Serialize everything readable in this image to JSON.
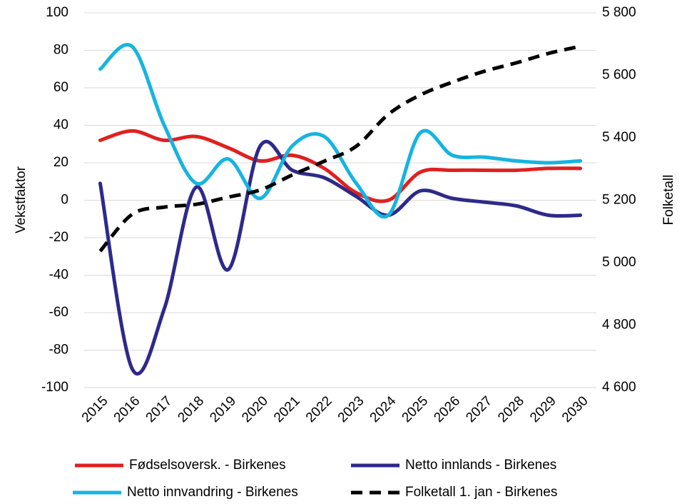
{
  "chart_data": {
    "type": "line",
    "categories": [
      "2015",
      "2016",
      "2017",
      "2018",
      "2019",
      "2020",
      "2021",
      "2022",
      "2023",
      "2024",
      "2025",
      "2026",
      "2027",
      "2028",
      "2029",
      "2030"
    ],
    "ylabel": "Vekstfaktor",
    "y2label": "Folketall",
    "ylim": [
      -100,
      100
    ],
    "yticks": [
      -100,
      -80,
      -60,
      -40,
      -20,
      0,
      20,
      40,
      60,
      80,
      100
    ],
    "y2lim": [
      4600,
      5800
    ],
    "y2ticks": [
      {
        "value": 4600,
        "label": "4 600"
      },
      {
        "value": 4800,
        "label": "4 800"
      },
      {
        "value": 5000,
        "label": "5 000"
      },
      {
        "value": 5200,
        "label": "5 200"
      },
      {
        "value": 5400,
        "label": "5 400"
      },
      {
        "value": 5600,
        "label": "5 600"
      },
      {
        "value": 5800,
        "label": "5 800"
      }
    ],
    "grid": true,
    "smooth": true,
    "legend": "bottom",
    "series": [
      {
        "name": "Fødselsoversk. - Birkenes",
        "color": "#e02020",
        "values": [
          32,
          37,
          32,
          34,
          28,
          21,
          24,
          17,
          4,
          0,
          15,
          16,
          16,
          16,
          17,
          17
        ]
      },
      {
        "name": "Netto innlands - Birkenes",
        "color": "#2e2a8a",
        "values": [
          9,
          -90,
          -58,
          7,
          -37,
          29,
          16,
          12,
          2,
          -8,
          5,
          1,
          -1,
          -3,
          -8,
          -8
        ]
      },
      {
        "name": "Netto innvandring - Birkenes",
        "color": "#16b4e0",
        "values": [
          70,
          82,
          40,
          9,
          22,
          1,
          29,
          34,
          9,
          -8,
          36,
          24,
          23,
          21,
          20,
          21
        ]
      },
      {
        "name": "Folketall 1. jan - Birkenes",
        "color": "#000000",
        "dashed": true,
        "axis": "y2",
        "values": [
          5037,
          5155,
          5178,
          5187,
          5210,
          5233,
          5281,
          5325,
          5373,
          5475,
          5537,
          5578,
          5613,
          5640,
          5670,
          5693
        ]
      }
    ]
  }
}
